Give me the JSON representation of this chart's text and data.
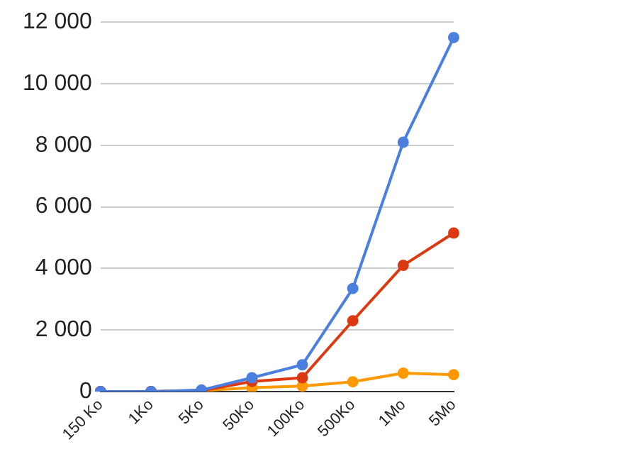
{
  "chart_data": {
    "type": "line",
    "categories": [
      "150 Ko",
      "1Ko",
      "5Ko",
      "50Ko",
      "100Ko",
      "500Ko",
      "1Mo",
      "5Mo"
    ],
    "series": [
      {
        "color": "#4a7fe0",
        "values": [
          0,
          0,
          50,
          450,
          870,
          3350,
          8100,
          11500
        ]
      },
      {
        "color": "#dc3912",
        "values": [
          0,
          0,
          30,
          330,
          450,
          2300,
          4100,
          5150
        ]
      },
      {
        "color": "#ff9900",
        "values": [
          0,
          0,
          30,
          130,
          180,
          320,
          600,
          550
        ]
      }
    ],
    "ylim": [
      0,
      12000
    ],
    "yticks": [
      {
        "value": 0,
        "label": "0"
      },
      {
        "value": 2000,
        "label": "2 000"
      },
      {
        "value": 4000,
        "label": "4 000"
      },
      {
        "value": 6000,
        "label": "6 000"
      },
      {
        "value": 8000,
        "label": "8 000"
      },
      {
        "value": 10000,
        "label": "10 000"
      },
      {
        "value": 12000,
        "label": "12 000"
      }
    ],
    "grid": "y",
    "legend": false,
    "marker": "circle",
    "line_style": "solid"
  }
}
